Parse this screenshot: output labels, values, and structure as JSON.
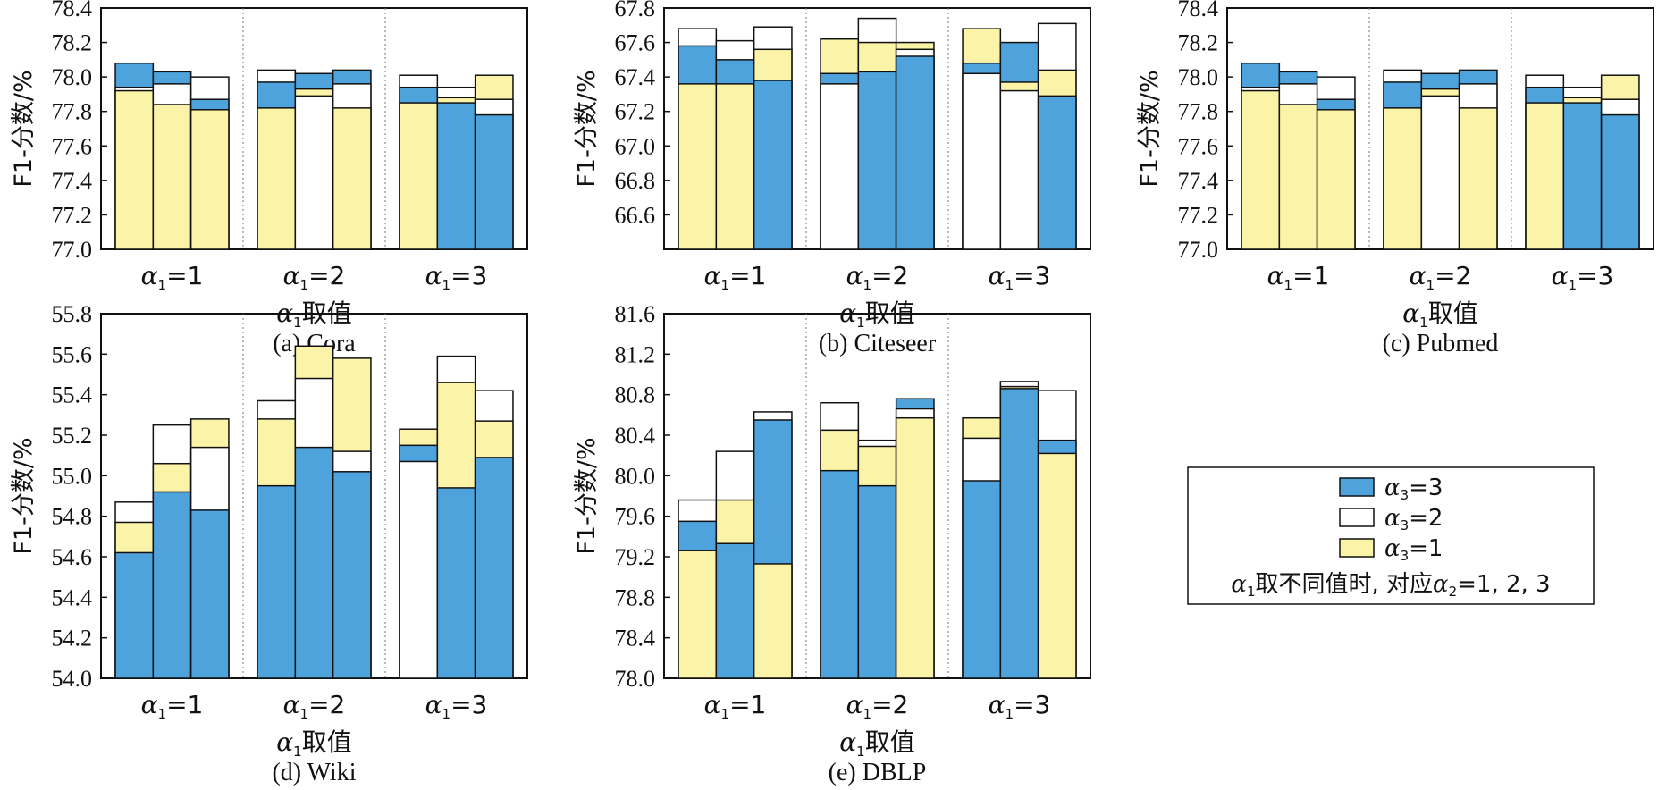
{
  "colors": {
    "a3_3": "#4fa3dd",
    "a3_2": "#ffffff",
    "a3_1": "#fbf3a8"
  },
  "legend": {
    "items": [
      {
        "key": "a3_3",
        "sym": "α",
        "sub": "3",
        "text": "=3"
      },
      {
        "key": "a3_2",
        "sym": "α",
        "sub": "3",
        "text": "=2"
      },
      {
        "key": "a3_1",
        "sym": "α",
        "sub": "3",
        "text": "=1"
      }
    ],
    "note": {
      "sym1": "α",
      "sub1": "1",
      "mid": "取不同值时, 对应",
      "sym2": "α",
      "sub2": "2",
      "tail": "=1, 2, 3"
    }
  },
  "chart_data": [
    {
      "type": "bar",
      "layout": "overlapping-stacked",
      "caption": "(a) Cora",
      "ylabel": "F1-分数/%",
      "xlabel": {
        "sym": "α",
        "sub": "1",
        "text": "取值"
      },
      "ylim": [
        77.0,
        78.4
      ],
      "yticks": [
        "77.0",
        "77.2",
        "77.4",
        "77.6",
        "77.8",
        "78.0",
        "78.2",
        "78.4"
      ],
      "groups": [
        {
          "sym": "α",
          "sub": "1",
          "label": "=1",
          "bars": [
            {
              "a3_1": 77.92,
              "a3_2": 77.94,
              "a3_3": 78.08
            },
            {
              "a3_1": 77.84,
              "a3_2": 77.96,
              "a3_3": 78.03
            },
            {
              "a3_1": 77.81,
              "a3_2": 78.0,
              "a3_3": 77.87
            }
          ]
        },
        {
          "sym": "α",
          "sub": "1",
          "label": "=2",
          "bars": [
            {
              "a3_1": 77.82,
              "a3_2": 78.04,
              "a3_3": 77.97
            },
            {
              "a3_1": 77.93,
              "a3_2": 77.89,
              "a3_3": 78.02
            },
            {
              "a3_1": 77.82,
              "a3_2": 77.96,
              "a3_3": 78.04
            }
          ]
        },
        {
          "sym": "α",
          "sub": "1",
          "label": "=3",
          "bars": [
            {
              "a3_1": 77.85,
              "a3_2": 78.01,
              "a3_3": 77.94
            },
            {
              "a3_1": 77.88,
              "a3_2": 77.94,
              "a3_3": 77.85
            },
            {
              "a3_1": 78.01,
              "a3_2": 77.87,
              "a3_3": 77.78
            }
          ]
        }
      ]
    },
    {
      "type": "bar",
      "layout": "overlapping-stacked",
      "caption": "(b) Citeseer",
      "ylabel": "F1-分数/%",
      "xlabel": {
        "sym": "α",
        "sub": "1",
        "text": "取值"
      },
      "ylim": [
        66.4,
        67.8
      ],
      "yticks": [
        "66.6",
        "66.8",
        "67.0",
        "67.2",
        "67.4",
        "67.6",
        "67.8"
      ],
      "groups": [
        {
          "sym": "α",
          "sub": "1",
          "label": "=1",
          "bars": [
            {
              "a3_1": 67.36,
              "a3_2": 67.68,
              "a3_3": 67.58
            },
            {
              "a3_1": 67.36,
              "a3_2": 67.61,
              "a3_3": 67.5
            },
            {
              "a3_1": 67.56,
              "a3_2": 67.69,
              "a3_3": 67.38
            }
          ]
        },
        {
          "sym": "α",
          "sub": "1",
          "label": "=2",
          "bars": [
            {
              "a3_1": 67.62,
              "a3_2": 67.36,
              "a3_3": 67.42
            },
            {
              "a3_1": 67.6,
              "a3_2": 67.74,
              "a3_3": 67.43
            },
            {
              "a3_1": 67.6,
              "a3_2": 67.56,
              "a3_3": 67.52
            }
          ]
        },
        {
          "sym": "α",
          "sub": "1",
          "label": "=3",
          "bars": [
            {
              "a3_1": 67.68,
              "a3_2": 67.42,
              "a3_3": 67.48
            },
            {
              "a3_1": 67.37,
              "a3_2": 67.32,
              "a3_3": 67.6
            },
            {
              "a3_1": 67.44,
              "a3_2": 67.71,
              "a3_3": 67.29
            }
          ]
        }
      ]
    },
    {
      "type": "bar",
      "layout": "overlapping-stacked",
      "caption": "(c) Pubmed",
      "ylabel": "F1-分数/%",
      "xlabel": {
        "sym": "α",
        "sub": "1",
        "text": "取值"
      },
      "ylim": [
        77.0,
        78.4
      ],
      "yticks": [
        "77.0",
        "77.2",
        "77.4",
        "77.6",
        "77.8",
        "78.0",
        "78.2",
        "78.4"
      ],
      "groups": [
        {
          "sym": "α",
          "sub": "1",
          "label": "=1",
          "bars": [
            {
              "a3_1": 77.92,
              "a3_2": 77.94,
              "a3_3": 78.08
            },
            {
              "a3_1": 77.84,
              "a3_2": 77.96,
              "a3_3": 78.03
            },
            {
              "a3_1": 77.81,
              "a3_2": 78.0,
              "a3_3": 77.87
            }
          ]
        },
        {
          "sym": "α",
          "sub": "1",
          "label": "=2",
          "bars": [
            {
              "a3_1": 77.82,
              "a3_2": 78.04,
              "a3_3": 77.97
            },
            {
              "a3_1": 77.93,
              "a3_2": 77.89,
              "a3_3": 78.02
            },
            {
              "a3_1": 77.82,
              "a3_2": 77.96,
              "a3_3": 78.04
            }
          ]
        },
        {
          "sym": "α",
          "sub": "1",
          "label": "=3",
          "bars": [
            {
              "a3_1": 77.85,
              "a3_2": 78.01,
              "a3_3": 77.94
            },
            {
              "a3_1": 77.88,
              "a3_2": 77.94,
              "a3_3": 77.85
            },
            {
              "a3_1": 78.01,
              "a3_2": 77.87,
              "a3_3": 77.78
            }
          ]
        }
      ]
    },
    {
      "type": "bar",
      "layout": "overlapping-stacked",
      "caption": "(d) Wiki",
      "ylabel": "F1-分数/%",
      "xlabel": {
        "sym": "α",
        "sub": "1",
        "text": "取值"
      },
      "ylim": [
        54.0,
        55.8
      ],
      "yticks": [
        "54.0",
        "54.2",
        "54.4",
        "54.6",
        "54.8",
        "55.0",
        "55.2",
        "55.4",
        "55.6",
        "55.8"
      ],
      "groups": [
        {
          "sym": "α",
          "sub": "1",
          "label": "=1",
          "bars": [
            {
              "a3_1": 54.77,
              "a3_2": 54.87,
              "a3_3": 54.62
            },
            {
              "a3_1": 55.06,
              "a3_2": 55.25,
              "a3_3": 54.92
            },
            {
              "a3_1": 55.28,
              "a3_2": 55.14,
              "a3_3": 54.83
            }
          ]
        },
        {
          "sym": "α",
          "sub": "1",
          "label": "=2",
          "bars": [
            {
              "a3_1": 55.28,
              "a3_2": 55.37,
              "a3_3": 54.95
            },
            {
              "a3_1": 55.64,
              "a3_2": 55.48,
              "a3_3": 55.14
            },
            {
              "a3_1": 55.58,
              "a3_2": 55.12,
              "a3_3": 55.02
            }
          ]
        },
        {
          "sym": "α",
          "sub": "1",
          "label": "=3",
          "bars": [
            {
              "a3_1": 55.23,
              "a3_2": 55.07,
              "a3_3": 55.15
            },
            {
              "a3_1": 55.46,
              "a3_2": 55.59,
              "a3_3": 54.94
            },
            {
              "a3_1": 55.27,
              "a3_2": 55.42,
              "a3_3": 55.09
            }
          ]
        }
      ]
    },
    {
      "type": "bar",
      "layout": "overlapping-stacked",
      "caption": "(e) DBLP",
      "ylabel": "F1-分数/%",
      "xlabel": {
        "sym": "α",
        "sub": "1",
        "text": "取值"
      },
      "ylim": [
        78.0,
        81.6
      ],
      "yticks": [
        "78.0",
        "78.4",
        "78.8",
        "79.2",
        "79.6",
        "80.0",
        "80.4",
        "80.8",
        "81.2",
        "81.6"
      ],
      "groups": [
        {
          "sym": "α",
          "sub": "1",
          "label": "=1",
          "bars": [
            {
              "a3_1": 79.26,
              "a3_2": 79.76,
              "a3_3": 79.55
            },
            {
              "a3_1": 79.76,
              "a3_2": 80.24,
              "a3_3": 79.33
            },
            {
              "a3_1": 79.13,
              "a3_2": 80.63,
              "a3_3": 80.55
            }
          ]
        },
        {
          "sym": "α",
          "sub": "1",
          "label": "=2",
          "bars": [
            {
              "a3_1": 80.45,
              "a3_2": 80.72,
              "a3_3": 80.05
            },
            {
              "a3_1": 80.29,
              "a3_2": 80.35,
              "a3_3": 79.9
            },
            {
              "a3_1": 80.57,
              "a3_2": 80.66,
              "a3_3": 80.76
            }
          ]
        },
        {
          "sym": "α",
          "sub": "1",
          "label": "=3",
          "bars": [
            {
              "a3_1": 80.57,
              "a3_2": 80.37,
              "a3_3": 79.95
            },
            {
              "a3_1": 80.88,
              "a3_2": 80.93,
              "a3_3": 80.86
            },
            {
              "a3_1": 80.22,
              "a3_2": 80.84,
              "a3_3": 80.35
            }
          ]
        }
      ]
    }
  ]
}
